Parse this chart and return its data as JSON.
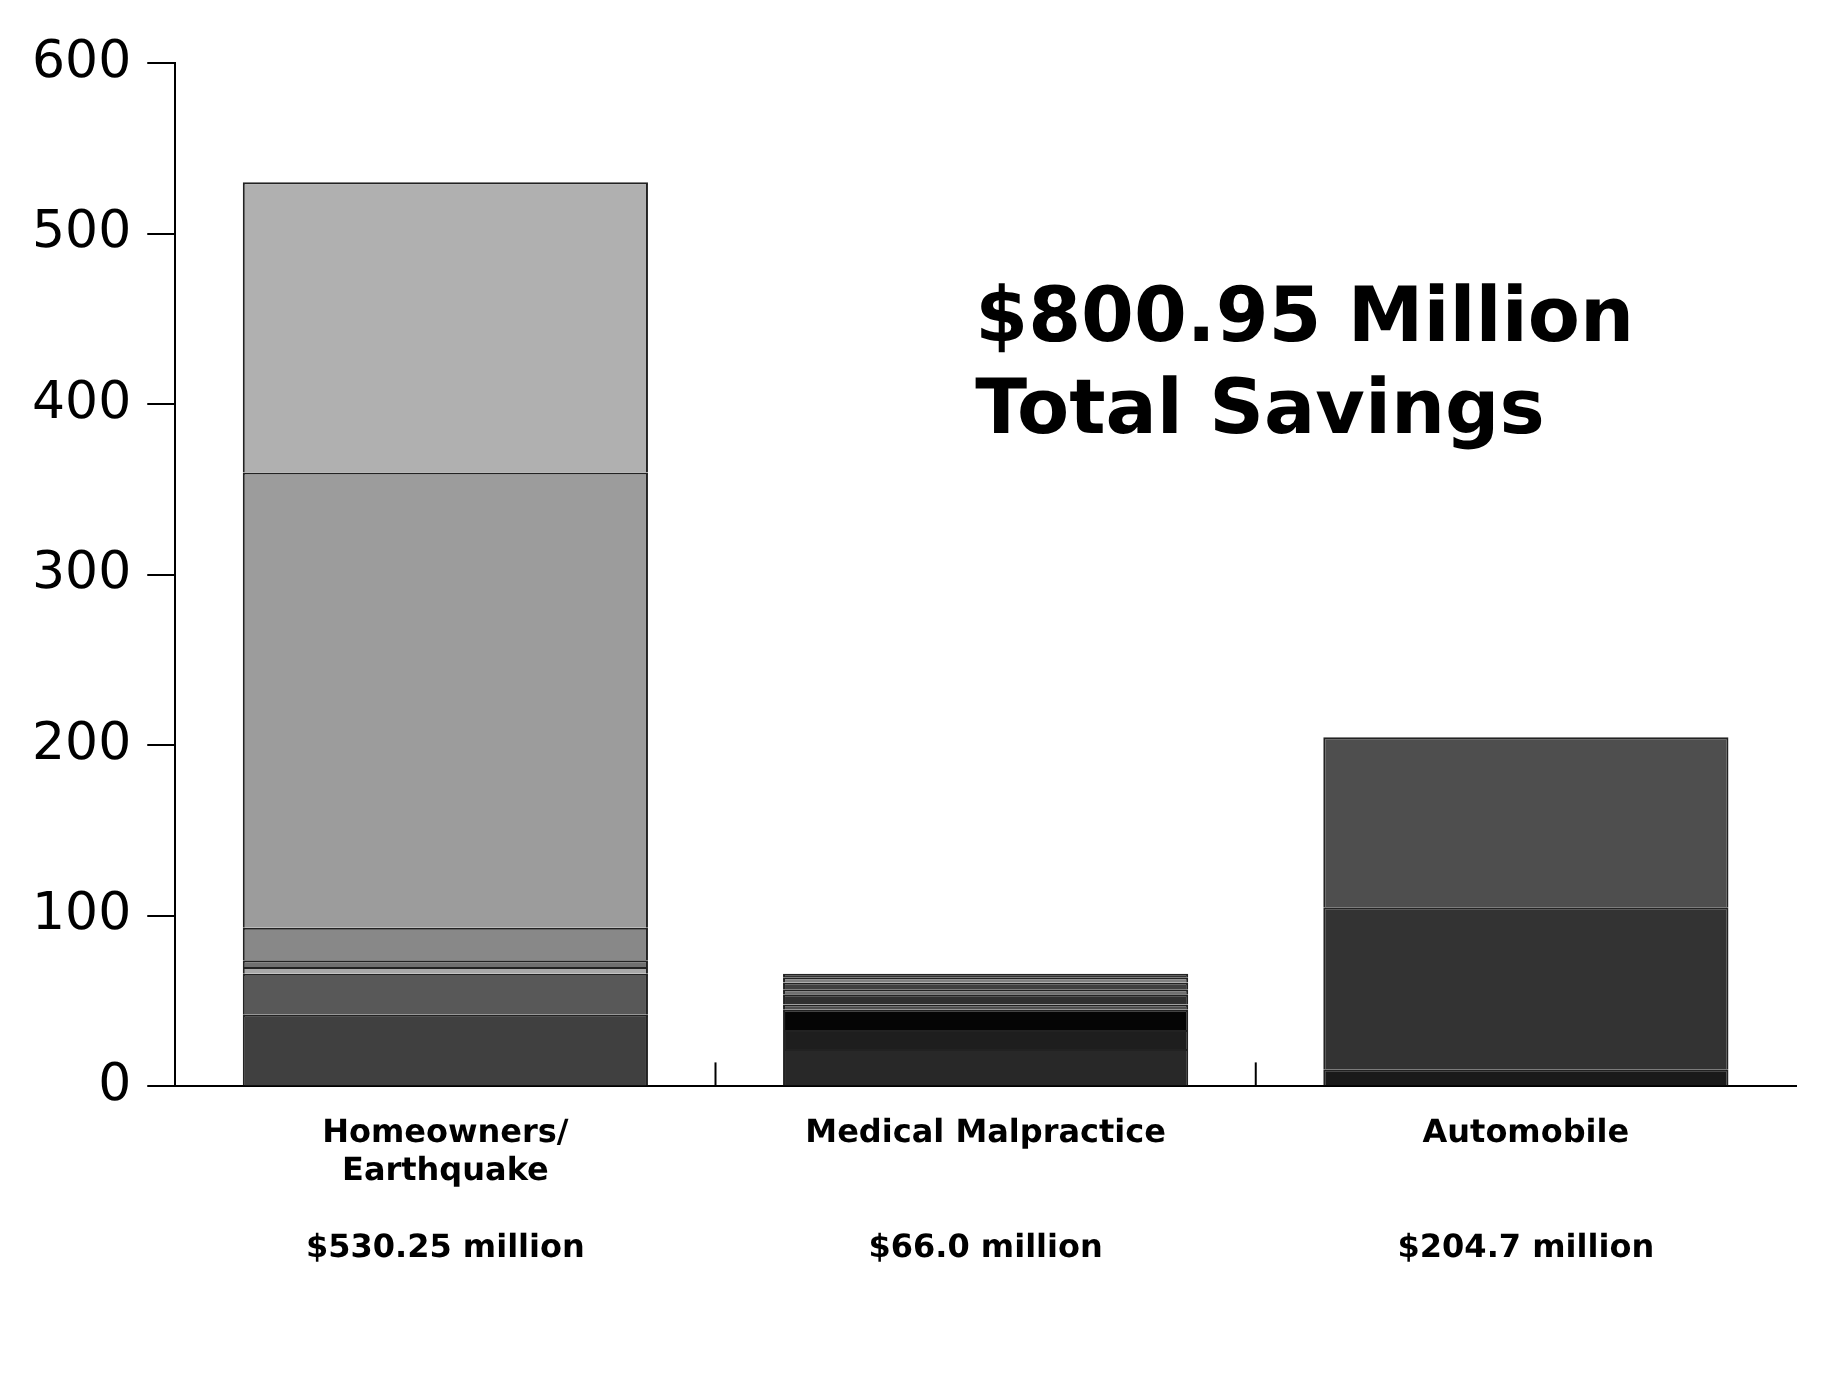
{
  "chart_data": {
    "type": "bar",
    "stacked": true,
    "categories": [
      "Homeowners/\nEarthquake\n\n$530.25 million",
      "Medical Malpractice\n\n\n$66.0 million",
      "Automobile\n\n\n$204.7 million"
    ],
    "series": [
      {
        "colors": [
          "#404040",
          "#282828",
          "#1a1a1a"
        ],
        "values": [
          42,
          22,
          10
        ]
      },
      {
        "colors": [
          "#585858",
          "#1e1e1e",
          "#333333"
        ],
        "values": [
          24,
          11,
          95
        ]
      },
      {
        "colors": [
          "#a8a8a8",
          "#050505",
          "#4e4e4e"
        ],
        "values": [
          4,
          12,
          99.7
        ]
      },
      {
        "colors": [
          "#707070",
          "#505050",
          null
        ],
        "values": [
          4,
          3,
          null
        ]
      },
      {
        "colors": [
          "#888888",
          "#303030",
          null
        ],
        "values": [
          19,
          6,
          null
        ]
      },
      {
        "colors": [
          "#9c9c9c",
          "#707070",
          null
        ],
        "values": [
          267,
          3,
          null
        ]
      },
      {
        "colors": [
          "#b0b0b0",
          "#404040",
          null
        ],
        "values": [
          170.25,
          4,
          null
        ]
      },
      {
        "colors": [
          null,
          "#808080",
          null
        ],
        "values": [
          null,
          3,
          null
        ]
      },
      {
        "colors": [
          null,
          "#303030",
          null
        ],
        "values": [
          null,
          2,
          null
        ]
      }
    ],
    "annotations": [
      "$800.95 Million\nTotal Savings"
    ],
    "ylim": [
      0,
      600
    ],
    "yticks": [
      0,
      100,
      200,
      300,
      400,
      500,
      600
    ],
    "grid": false,
    "legend": false
  }
}
